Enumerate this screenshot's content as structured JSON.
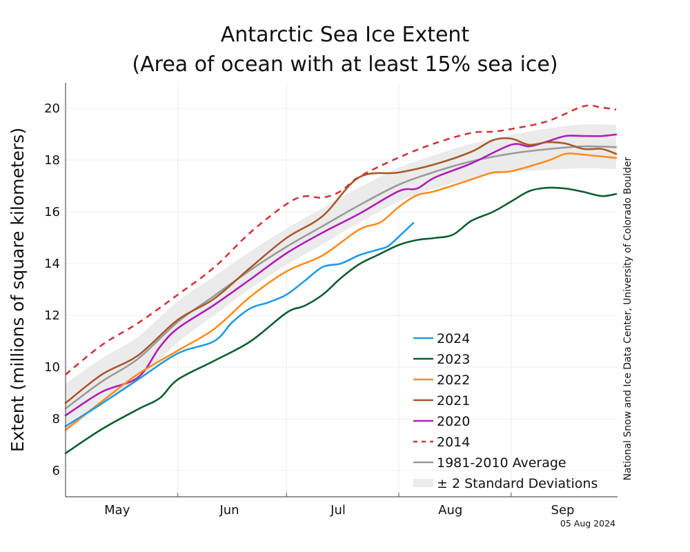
{
  "chart_data": {
    "type": "line",
    "title": "Antarctic Sea Ice Extent",
    "subtitle": "(Area of ocean with at least 15% sea ice)",
    "ylabel": "Extent (millions of square kilometers)",
    "xlabel": "",
    "ylim": [
      5,
      21
    ],
    "xlim": [
      "May 1",
      "Sep 30"
    ],
    "yticks": [
      6,
      8,
      10,
      12,
      14,
      16,
      18,
      20
    ],
    "xticks": [
      "May",
      "Jun",
      "Jul",
      "Aug",
      "Sep"
    ],
    "grid": true,
    "legend_position": "bottom-right",
    "credit": "National Snow and Ice Data Center, University of Colorado Boulder",
    "date_stamp": "05 Aug 2024",
    "band": {
      "name": "± 2 Standard Deviations",
      "color": "#ebebeb",
      "points": [
        [
          "May 1",
          8.4,
          0.95
        ],
        [
          "May 11",
          9.44,
          0.9
        ],
        [
          "May 21",
          10.32,
          0.85
        ],
        [
          "Jun 1",
          11.75,
          0.8
        ],
        [
          "Jun 11",
          12.75,
          0.75
        ],
        [
          "Jun 21",
          13.75,
          0.72
        ],
        [
          "Jul 1",
          14.65,
          0.7
        ],
        [
          "Jul 11",
          15.45,
          0.7
        ],
        [
          "Jul 21",
          16.25,
          0.68
        ],
        [
          "Aug 1",
          17.05,
          0.65
        ],
        [
          "Aug 11",
          17.55,
          0.65
        ],
        [
          "Aug 21",
          17.95,
          0.68
        ],
        [
          "Sep 1",
          18.25,
          0.72
        ],
        [
          "Sep 11",
          18.42,
          0.8
        ],
        [
          "Sep 21",
          18.53,
          0.85
        ],
        [
          "Sep 30",
          18.5,
          0.85
        ]
      ]
    },
    "series": [
      {
        "name": "2024",
        "color": "#1f9be6",
        "dashed": false,
        "points": [
          [
            "May 1",
            7.71
          ],
          [
            "May 11",
            8.59
          ],
          [
            "May 21",
            9.52
          ],
          [
            "Jun 1",
            10.53
          ],
          [
            "Jun 11",
            11.0
          ],
          [
            "Jun 16",
            11.73
          ],
          [
            "Jun 21",
            12.27
          ],
          [
            "Jun 26",
            12.5
          ],
          [
            "Jul 1",
            12.8
          ],
          [
            "Jul 6",
            13.33
          ],
          [
            "Jul 11",
            13.87
          ],
          [
            "Jul 16",
            14.0
          ],
          [
            "Jul 21",
            14.32
          ],
          [
            "Jul 26",
            14.53
          ],
          [
            "Jul 29",
            14.67
          ],
          [
            "Aug 1",
            15.04
          ],
          [
            "Aug 5",
            15.57
          ]
        ]
      },
      {
        "name": "2023",
        "color": "#0d5e2e",
        "dashed": false,
        "points": [
          [
            "May 1",
            6.67
          ],
          [
            "May 11",
            7.6
          ],
          [
            "May 21",
            8.37
          ],
          [
            "May 27",
            8.8
          ],
          [
            "Jun 1",
            9.52
          ],
          [
            "Jun 11",
            10.24
          ],
          [
            "Jun 21",
            10.99
          ],
          [
            "Jul 1",
            12.1
          ],
          [
            "Jul 6",
            12.37
          ],
          [
            "Jul 11",
            12.8
          ],
          [
            "Jul 16",
            13.44
          ],
          [
            "Jul 21",
            13.97
          ],
          [
            "Jul 26",
            14.32
          ],
          [
            "Aug 1",
            14.72
          ],
          [
            "Aug 6",
            14.91
          ],
          [
            "Aug 11",
            14.99
          ],
          [
            "Aug 16",
            15.12
          ],
          [
            "Aug 21",
            15.65
          ],
          [
            "Aug 27",
            16.0
          ],
          [
            "Sep 1",
            16.4
          ],
          [
            "Sep 6",
            16.8
          ],
          [
            "Sep 11",
            16.93
          ],
          [
            "Sep 16",
            16.9
          ],
          [
            "Sep 21",
            16.77
          ],
          [
            "Sep 26",
            16.61
          ],
          [
            "Sep 30",
            16.69
          ]
        ]
      },
      {
        "name": "2022",
        "color": "#ff8c1a",
        "dashed": false,
        "points": [
          [
            "May 1",
            7.57
          ],
          [
            "May 11",
            8.67
          ],
          [
            "May 21",
            9.73
          ],
          [
            "Jun 1",
            10.64
          ],
          [
            "Jun 11",
            11.47
          ],
          [
            "Jun 21",
            12.72
          ],
          [
            "Jul 1",
            13.7
          ],
          [
            "Jul 11",
            14.32
          ],
          [
            "Jul 21",
            15.31
          ],
          [
            "Jul 27",
            15.6
          ],
          [
            "Aug 1",
            16.19
          ],
          [
            "Aug 6",
            16.64
          ],
          [
            "Aug 11",
            16.8
          ],
          [
            "Aug 21",
            17.25
          ],
          [
            "Aug 27",
            17.52
          ],
          [
            "Sep 1",
            17.57
          ],
          [
            "Sep 11",
            17.97
          ],
          [
            "Sep 16",
            18.24
          ],
          [
            "Sep 21",
            18.21
          ],
          [
            "Sep 30",
            18.08
          ]
        ]
      },
      {
        "name": "2021",
        "color": "#a8582a",
        "dashed": false,
        "points": [
          [
            "May 1",
            8.61
          ],
          [
            "May 11",
            9.71
          ],
          [
            "May 21",
            10.45
          ],
          [
            "Jun 1",
            11.83
          ],
          [
            "Jun 11",
            12.64
          ],
          [
            "Jun 21",
            13.84
          ],
          [
            "Jul 1",
            14.99
          ],
          [
            "Jul 11",
            15.84
          ],
          [
            "Jul 21",
            17.33
          ],
          [
            "Aug 1",
            17.52
          ],
          [
            "Aug 11",
            17.84
          ],
          [
            "Aug 21",
            18.32
          ],
          [
            "Aug 27",
            18.77
          ],
          [
            "Sep 1",
            18.83
          ],
          [
            "Sep 6",
            18.59
          ],
          [
            "Sep 11",
            18.69
          ],
          [
            "Sep 16",
            18.64
          ],
          [
            "Sep 21",
            18.43
          ],
          [
            "Sep 26",
            18.43
          ],
          [
            "Sep 30",
            18.24
          ]
        ]
      },
      {
        "name": "2020",
        "color": "#b01cb8",
        "dashed": false,
        "points": [
          [
            "May 1",
            8.13
          ],
          [
            "May 11",
            9.04
          ],
          [
            "May 21",
            9.6
          ],
          [
            "May 27",
            10.77
          ],
          [
            "Jun 1",
            11.5
          ],
          [
            "Jun 11",
            12.4
          ],
          [
            "Jun 21",
            13.39
          ],
          [
            "Jul 1",
            14.4
          ],
          [
            "Jul 11",
            15.2
          ],
          [
            "Jul 21",
            15.92
          ],
          [
            "Aug 1",
            16.8
          ],
          [
            "Aug 6",
            16.9
          ],
          [
            "Aug 11",
            17.33
          ],
          [
            "Aug 21",
            17.87
          ],
          [
            "Sep 1",
            18.59
          ],
          [
            "Sep 6",
            18.53
          ],
          [
            "Sep 11",
            18.72
          ],
          [
            "Sep 16",
            18.93
          ],
          [
            "Sep 21",
            18.93
          ],
          [
            "Sep 26",
            18.93
          ],
          [
            "Sep 30",
            18.99
          ]
        ]
      },
      {
        "name": "2014",
        "color": "#d0343a",
        "dashed": true,
        "points": [
          [
            "May 1",
            9.71
          ],
          [
            "May 11",
            10.85
          ],
          [
            "May 21",
            11.7
          ],
          [
            "Jun 1",
            12.8
          ],
          [
            "Jun 11",
            13.85
          ],
          [
            "Jun 21",
            15.2
          ],
          [
            "Jul 1",
            16.3
          ],
          [
            "Jul 6",
            16.6
          ],
          [
            "Jul 11",
            16.55
          ],
          [
            "Jul 16",
            16.8
          ],
          [
            "Jul 21",
            17.35
          ],
          [
            "Aug 1",
            18.1
          ],
          [
            "Aug 11",
            18.65
          ],
          [
            "Aug 21",
            19.05
          ],
          [
            "Aug 27",
            19.1
          ],
          [
            "Sep 1",
            19.2
          ],
          [
            "Sep 11",
            19.5
          ],
          [
            "Sep 21",
            20.08
          ],
          [
            "Sep 26",
            20.03
          ],
          [
            "Sep 30",
            19.95
          ]
        ]
      },
      {
        "name": "1981-2010 Average",
        "color": "#9a9a9a",
        "dashed": false,
        "points": [
          [
            "May 1",
            8.4
          ],
          [
            "May 11",
            9.44
          ],
          [
            "May 21",
            10.32
          ],
          [
            "Jun 1",
            11.75
          ],
          [
            "Jun 11",
            12.75
          ],
          [
            "Jun 21",
            13.75
          ],
          [
            "Jul 1",
            14.65
          ],
          [
            "Jul 11",
            15.45
          ],
          [
            "Jul 21",
            16.25
          ],
          [
            "Aug 1",
            17.05
          ],
          [
            "Aug 11",
            17.55
          ],
          [
            "Aug 21",
            17.95
          ],
          [
            "Sep 1",
            18.25
          ],
          [
            "Sep 11",
            18.42
          ],
          [
            "Sep 21",
            18.53
          ],
          [
            "Sep 30",
            18.5
          ]
        ]
      }
    ]
  }
}
